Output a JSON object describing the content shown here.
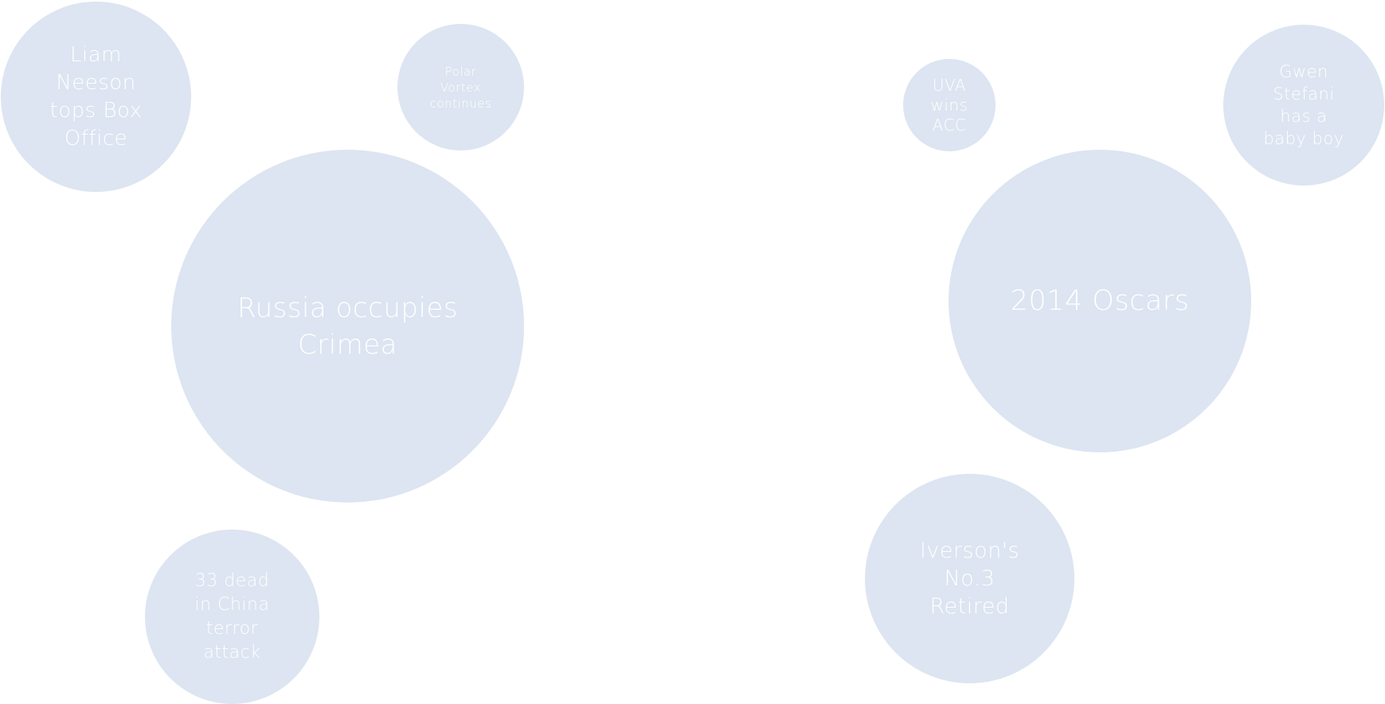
{
  "bubble_color": "#dce5f1",
  "text_color": "#ffffff",
  "bubbles": [
    {
      "id": "liam",
      "label": "Liam\nNeeson\ntops Box\nOffice"
    },
    {
      "id": "polar",
      "label": "Polar\nVortex\ncontinues"
    },
    {
      "id": "russia",
      "label": "Russia occupies\nCrimea"
    },
    {
      "id": "china",
      "label": "33 dead\nin China\nterror\nattack"
    },
    {
      "id": "uva",
      "label": "UVA\nwins\nACC"
    },
    {
      "id": "gwen",
      "label": "Gwen\nStefani\nhas a\nbaby boy"
    },
    {
      "id": "oscars",
      "label": "2014 Oscars"
    },
    {
      "id": "iverson",
      "label": "Iverson's\nNo.3\nRetired"
    }
  ]
}
